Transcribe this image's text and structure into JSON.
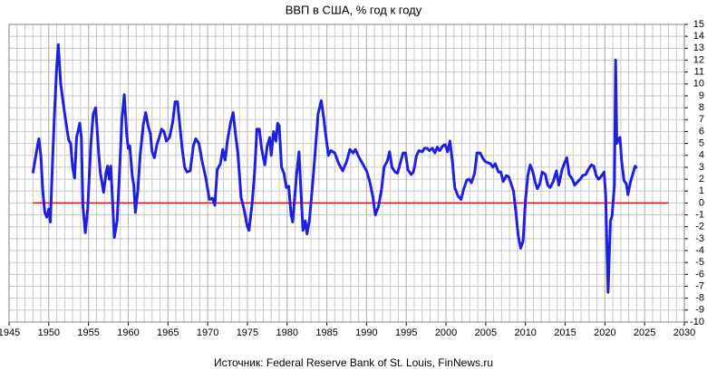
{
  "chart_data": {
    "type": "line",
    "title": "ВВП в США, % год к году",
    "source": "Источник: Federal Reserve Bank of St. Louis, FinNews.ru",
    "x": [
      1948.0,
      1948.5,
      1948.75,
      1949.0,
      1949.25,
      1949.5,
      1949.75,
      1950.0,
      1950.2,
      1950.5,
      1950.75,
      1951.0,
      1951.2,
      1951.5,
      1952.0,
      1952.5,
      1952.75,
      1953.0,
      1953.25,
      1953.5,
      1953.9,
      1954.1,
      1954.3,
      1954.6,
      1954.9,
      1955.3,
      1955.6,
      1955.9,
      1956.3,
      1956.5,
      1956.9,
      1957.2,
      1957.4,
      1957.6,
      1957.8,
      1958.0,
      1958.25,
      1958.6,
      1958.9,
      1959.2,
      1959.5,
      1959.8,
      1960.0,
      1960.2,
      1960.5,
      1960.7,
      1960.9,
      1961.2,
      1961.5,
      1961.9,
      1962.2,
      1962.5,
      1962.8,
      1963.0,
      1963.3,
      1963.6,
      1963.9,
      1964.2,
      1964.5,
      1964.8,
      1965.2,
      1965.6,
      1965.9,
      1966.2,
      1966.5,
      1966.8,
      1967.1,
      1967.4,
      1967.8,
      1968.2,
      1968.5,
      1968.9,
      1969.3,
      1969.8,
      1970.2,
      1970.6,
      1970.9,
      1971.2,
      1971.6,
      1971.9,
      1972.2,
      1972.5,
      1972.9,
      1973.2,
      1973.5,
      1973.8,
      1974.2,
      1974.6,
      1975.0,
      1975.2,
      1975.6,
      1975.9,
      1976.2,
      1976.5,
      1976.8,
      1977.2,
      1977.5,
      1977.8,
      1978.0,
      1978.3,
      1978.6,
      1978.8,
      1979.0,
      1979.3,
      1979.6,
      1979.9,
      1980.2,
      1980.5,
      1980.7,
      1980.9,
      1981.2,
      1981.5,
      1981.7,
      1982.0,
      1982.3,
      1982.5,
      1982.8,
      1983.2,
      1983.5,
      1983.9,
      1984.3,
      1984.6,
      1984.9,
      1985.2,
      1985.5,
      1986.0,
      1986.5,
      1987.0,
      1987.5,
      1987.9,
      1988.3,
      1988.6,
      1989.0,
      1989.5,
      1990.0,
      1990.4,
      1990.8,
      1991.1,
      1991.5,
      1991.9,
      1992.2,
      1992.6,
      1992.9,
      1993.2,
      1993.6,
      1993.9,
      1994.3,
      1994.6,
      1994.9,
      1995.2,
      1995.6,
      1995.9,
      1996.3,
      1996.6,
      1997.0,
      1997.3,
      1997.6,
      1997.9,
      1998.3,
      1998.6,
      1998.9,
      1999.2,
      1999.6,
      1999.9,
      2000.2,
      2000.5,
      2000.8,
      2001.1,
      2001.5,
      2001.9,
      2002.2,
      2002.6,
      2002.9,
      2003.2,
      2003.6,
      2003.9,
      2004.3,
      2004.6,
      2004.9,
      2005.2,
      2005.6,
      2005.9,
      2006.2,
      2006.6,
      2006.9,
      2007.2,
      2007.6,
      2007.9,
      2008.2,
      2008.5,
      2008.8,
      2009.1,
      2009.4,
      2009.7,
      2010.0,
      2010.3,
      2010.6,
      2010.9,
      2011.2,
      2011.5,
      2011.8,
      2012.1,
      2012.5,
      2012.8,
      2013.1,
      2013.5,
      2013.9,
      2014.2,
      2014.6,
      2015.0,
      2015.2,
      2015.5,
      2015.9,
      2016.2,
      2016.6,
      2016.9,
      2017.2,
      2017.6,
      2017.9,
      2018.3,
      2018.6,
      2018.9,
      2019.2,
      2019.5,
      2019.9,
      2020.1,
      2020.4,
      2020.7,
      2020.9,
      2021.2,
      2021.35,
      2021.5,
      2021.7,
      2021.9,
      2022.1,
      2022.4,
      2022.7,
      2022.9,
      2023.2,
      2023.5,
      2023.8,
      2024.0
    ],
    "series": [
      {
        "color": "#1f1fe0",
        "values": [
          2.5,
          4.5,
          5.4,
          4,
          1,
          -0.8,
          -1.2,
          -0.5,
          -1.6,
          4,
          8,
          11.5,
          13.3,
          10,
          7.5,
          5.3,
          5,
          3,
          2.1,
          5.5,
          6.7,
          5.5,
          -0.3,
          -2.5,
          -0.5,
          5,
          7.5,
          8,
          4,
          2.5,
          0.9,
          2.5,
          3.1,
          2,
          3.1,
          0.5,
          -2.9,
          -1.5,
          2.5,
          7,
          9.1,
          5.8,
          4.6,
          4.8,
          2.3,
          1.5,
          -0.8,
          1,
          4,
          6.6,
          7.6,
          6.5,
          5.8,
          4.3,
          3.8,
          4.9,
          5.5,
          6.2,
          6,
          5.2,
          5.5,
          6.8,
          8.5,
          8.5,
          6.5,
          4.5,
          3,
          2.6,
          2.7,
          4.8,
          5.4,
          5,
          3.5,
          2,
          0.3,
          0.4,
          -0.2,
          2.8,
          3.3,
          4.5,
          3.6,
          5.3,
          6.8,
          7.6,
          5.8,
          4.2,
          0.5,
          -0.6,
          -2,
          -2.3,
          0,
          2.5,
          6.2,
          6.2,
          4.5,
          3.2,
          4.8,
          5.5,
          4,
          6,
          5.2,
          6.7,
          6.5,
          3,
          2.5,
          1.3,
          1.4,
          -1,
          -1.6,
          0,
          2.5,
          4.3,
          1.5,
          -2.3,
          -1.5,
          -2.6,
          -1.5,
          1.5,
          4,
          7.5,
          8.6,
          7.2,
          5.5,
          4,
          4.4,
          4.2,
          3.3,
          2.7,
          3.5,
          4.5,
          4.2,
          4.5,
          3.9,
          3.3,
          2.7,
          1.8,
          0.5,
          -1,
          -0.3,
          1.2,
          3,
          3.5,
          4.3,
          3,
          2.6,
          2.5,
          3.5,
          4.2,
          4.2,
          2.8,
          2.4,
          2.6,
          4,
          4.4,
          4.3,
          4.6,
          4.6,
          4.4,
          4.6,
          4.2,
          4.7,
          4.4,
          4.8,
          4.9,
          4.3,
          5.2,
          3.5,
          1.3,
          0.6,
          0.3,
          1.1,
          1.9,
          2,
          1.7,
          2.5,
          4.2,
          4.2,
          3.8,
          3.5,
          3.4,
          3.3,
          3,
          3.3,
          2.6,
          2.6,
          1.8,
          2.3,
          2.2,
          1.6,
          1,
          -0.8,
          -2.8,
          -3.8,
          -3.2,
          0.2,
          2.3,
          3.2,
          2.7,
          1.8,
          1.2,
          1.6,
          2.6,
          2.4,
          1.5,
          1.3,
          1.8,
          2.7,
          1.5,
          2.8,
          3.5,
          3.8,
          2.4,
          2,
          1.5,
          1.8,
          2,
          2.3,
          2.4,
          2.8,
          3.2,
          3.1,
          2.3,
          2,
          2.2,
          2.6,
          0.6,
          -7.5,
          -1.5,
          -1.1,
          1.5,
          12,
          5,
          5.4,
          5.5,
          3.6,
          1.9,
          1.6,
          0.7,
          1.7,
          2.4,
          3.1,
          2.9
        ]
      }
    ],
    "xlim": [
      1945,
      2030
    ],
    "xticks": [
      1945,
      1950,
      1955,
      1960,
      1965,
      1970,
      1975,
      1980,
      1985,
      1990,
      1995,
      2000,
      2005,
      2010,
      2015,
      2020,
      2025,
      2030
    ],
    "x_minor_step": 1,
    "ylim": [
      -10,
      15
    ],
    "yticks": [
      -10,
      -9,
      -8,
      -7,
      -6,
      -5,
      -4,
      -3,
      -2,
      -1,
      0,
      1,
      2,
      3,
      4,
      5,
      6,
      7,
      8,
      9,
      10,
      11,
      12,
      13,
      14,
      15
    ],
    "grid": true,
    "y_axis_side": "right",
    "reference_line": {
      "value": 0,
      "color": "#ff0000"
    }
  }
}
